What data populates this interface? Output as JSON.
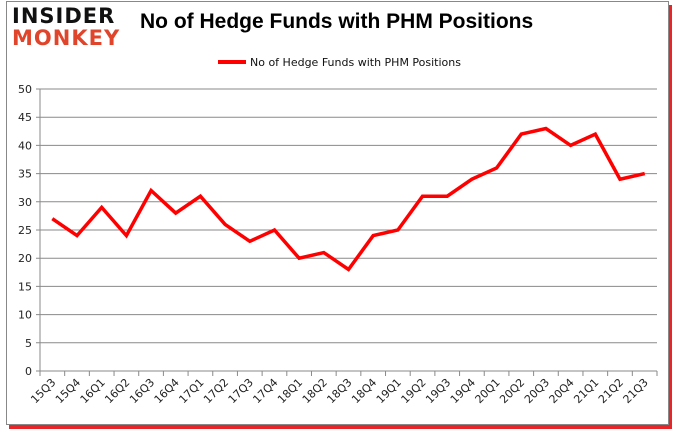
{
  "logo": {
    "line1": "INSIDER",
    "line2": "MONKEY"
  },
  "title": "No of Hedge Funds with PHM Positions",
  "legend": {
    "label": "No of Hedge Funds with PHM Positions",
    "color": "#ff0000"
  },
  "chart_data": {
    "type": "line",
    "title": "No of Hedge Funds with PHM Positions",
    "xlabel": "",
    "ylabel": "",
    "ylim": [
      0,
      50
    ],
    "yticks": [
      0,
      5,
      10,
      15,
      20,
      25,
      30,
      35,
      40,
      45,
      50
    ],
    "grid": true,
    "legend_position": "top",
    "categories": [
      "15Q3",
      "15Q4",
      "16Q1",
      "16Q2",
      "16Q3",
      "16Q4",
      "17Q1",
      "17Q2",
      "17Q3",
      "17Q4",
      "18Q1",
      "18Q2",
      "18Q3",
      "18Q4",
      "19Q1",
      "19Q2",
      "19Q3",
      "19Q4",
      "20Q1",
      "20Q2",
      "20Q3",
      "20Q4",
      "21Q1",
      "21Q2",
      "21Q3"
    ],
    "series": [
      {
        "name": "No of Hedge Funds with PHM Positions",
        "color": "#ff0000",
        "values": [
          27,
          24,
          29,
          24,
          32,
          28,
          31,
          26,
          23,
          25,
          20,
          21,
          18,
          24,
          25,
          31,
          31,
          34,
          36,
          42,
          43,
          40,
          42,
          34,
          35
        ]
      }
    ]
  }
}
